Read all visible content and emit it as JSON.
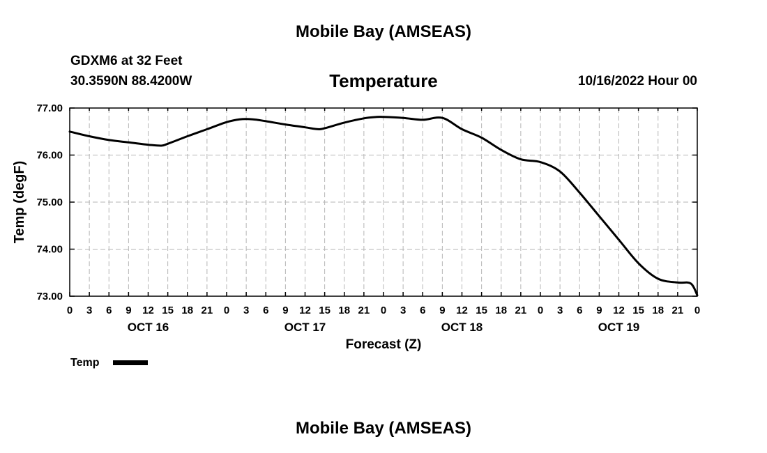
{
  "header": {
    "title": "Mobile Bay (AMSEAS)",
    "station": "GDXM6 at 32 Feet",
    "location": "30.3590N  88.4200W",
    "forecast_time": "10/16/2022 Hour 00",
    "footer_title": "Mobile Bay (AMSEAS)"
  },
  "chart_data": {
    "type": "line",
    "title": "Temperature",
    "xlabel": "Forecast (Z)",
    "ylabel": "Temp (degF)",
    "ylim": [
      73.0,
      77.0
    ],
    "yticks": [
      "73.00",
      "74.00",
      "75.00",
      "76.00",
      "77.00"
    ],
    "xlim_hours": [
      0,
      96
    ],
    "xtick_step_hours": 3,
    "xtick_labels": [
      "0",
      "3",
      "6",
      "9",
      "12",
      "15",
      "18",
      "21",
      "0",
      "3",
      "6",
      "9",
      "12",
      "15",
      "18",
      "21",
      "0",
      "3",
      "6",
      "9",
      "12",
      "15",
      "18",
      "21",
      "0",
      "3",
      "6",
      "9",
      "12",
      "15",
      "18",
      "21",
      "0"
    ],
    "day_labels": [
      {
        "text": "OCT 16",
        "hour": 12
      },
      {
        "text": "OCT 17",
        "hour": 36
      },
      {
        "text": "OCT 18",
        "hour": 60
      },
      {
        "text": "OCT 19",
        "hour": 84
      }
    ],
    "grid": true,
    "legend": {
      "label": "Temp",
      "position": "bottom-left"
    },
    "series": [
      {
        "name": "Temp",
        "color": "#000000",
        "x": [
          0,
          3,
          6,
          9,
          12,
          14,
          15,
          18,
          21,
          24,
          26,
          28,
          30,
          33,
          36,
          38,
          39,
          42,
          45,
          47,
          48,
          51,
          54,
          57,
          60,
          63,
          66,
          69,
          72,
          75,
          78,
          81,
          84,
          87,
          90,
          93,
          95,
          96
        ],
        "values": [
          76.5,
          76.4,
          76.32,
          76.27,
          76.22,
          76.2,
          76.24,
          76.4,
          76.55,
          76.7,
          76.76,
          76.76,
          76.72,
          76.65,
          76.59,
          76.55,
          76.57,
          76.69,
          76.78,
          76.81,
          76.81,
          76.79,
          76.75,
          76.79,
          76.55,
          76.37,
          76.11,
          75.91,
          75.85,
          75.65,
          75.2,
          74.7,
          74.2,
          73.7,
          73.37,
          73.29,
          73.27,
          73.02
        ]
      }
    ]
  }
}
